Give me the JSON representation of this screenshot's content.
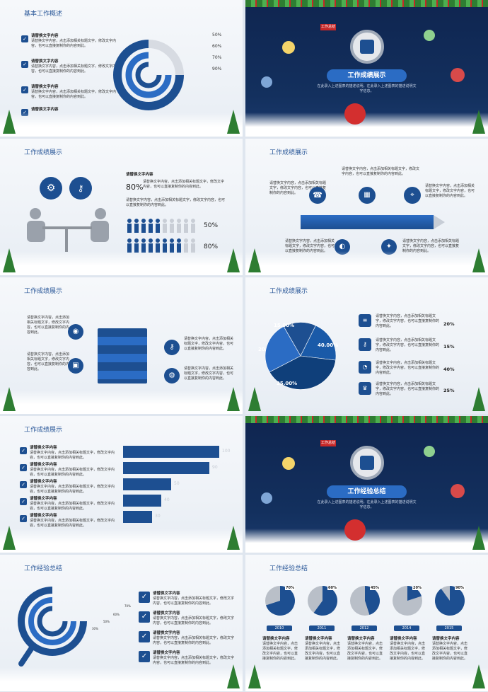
{
  "titles": {
    "s1": "基本工作概述",
    "s3": "工作成绩展示",
    "s4": "工作成绩展示",
    "s5": "工作成绩展示",
    "s6": "工作成绩展示",
    "s7": "工作成绩展示",
    "s9": "工作经验总结",
    "s10": "工作经验总结"
  },
  "section": {
    "show": "工作成绩展示",
    "summary": "工作经验总结",
    "sub": "在此录入上述图表的描述说明，在此录入上述图表的描述说明文字信息。",
    "tag": "工作总结"
  },
  "item_heading": "请替换文字内容",
  "item_body": "请替换文字内容，点击添加相关标题文字，修改文字内容，也可以直接复制你的内容到此。",
  "s1_pcts": [
    "50%",
    "60%",
    "70%",
    "90%"
  ],
  "s3": {
    "p1": "80%",
    "p2": "50%",
    "p3": "80%"
  },
  "s6": {
    "slices": [
      "15.00%",
      "20.00%",
      "40.00%",
      "25.00%"
    ],
    "pcts": [
      "20%",
      "15%",
      "40%",
      "25%"
    ]
  },
  "s7": {
    "vals": [
      "100",
      "90",
      "50",
      "40",
      "30"
    ]
  },
  "s9": {
    "pcts": [
      "70%",
      "60%",
      "50%",
      "30%"
    ]
  },
  "s10": {
    "years": [
      "2010",
      "2011",
      "2012",
      "2014",
      "2015"
    ],
    "pcts": [
      "70%",
      "60%",
      "45%",
      "20%",
      "90%"
    ]
  },
  "chart_data": {
    "type": "pie",
    "values": [
      15,
      20,
      40,
      25
    ],
    "labels": [
      "15.00%",
      "20.00%",
      "40.00%",
      "25.00%"
    ]
  }
}
